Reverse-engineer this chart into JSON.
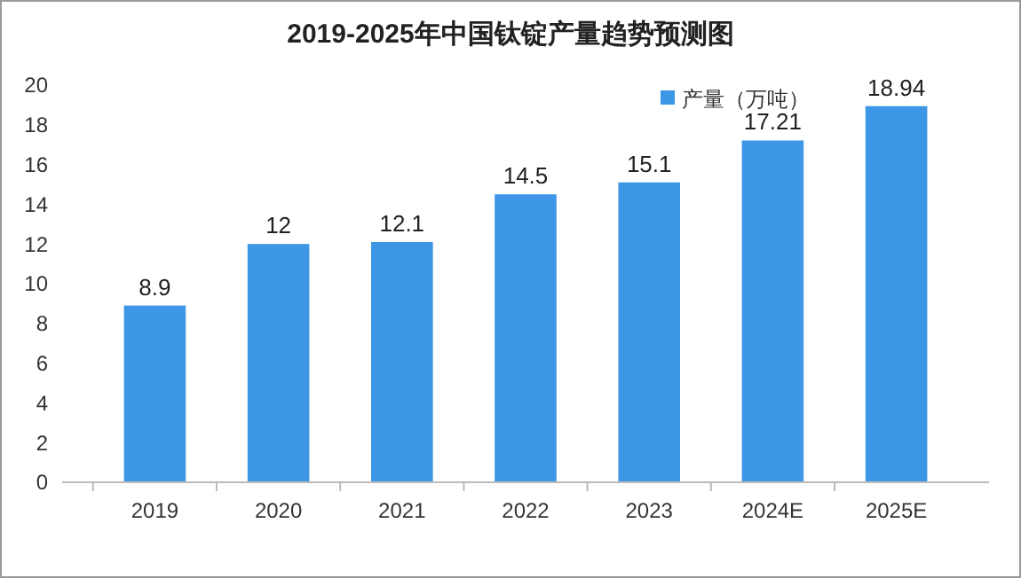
{
  "chart_data": {
    "type": "bar",
    "title": "2019-2025年中国钛锭产量趋势预测图",
    "categories": [
      "2019",
      "2020",
      "2021",
      "2022",
      "2023",
      "2024E",
      "2025E"
    ],
    "series": [
      {
        "name": "产量（万吨）",
        "color": "#3d97e6",
        "values": [
          8.9,
          12,
          12.1,
          14.5,
          15.1,
          17.21,
          18.94
        ]
      }
    ],
    "ylim": [
      0,
      20
    ],
    "yticks": [
      0,
      2,
      4,
      6,
      8,
      10,
      12,
      14,
      16,
      18,
      20
    ],
    "grid": false,
    "legend": "top right",
    "data_labels": true
  }
}
